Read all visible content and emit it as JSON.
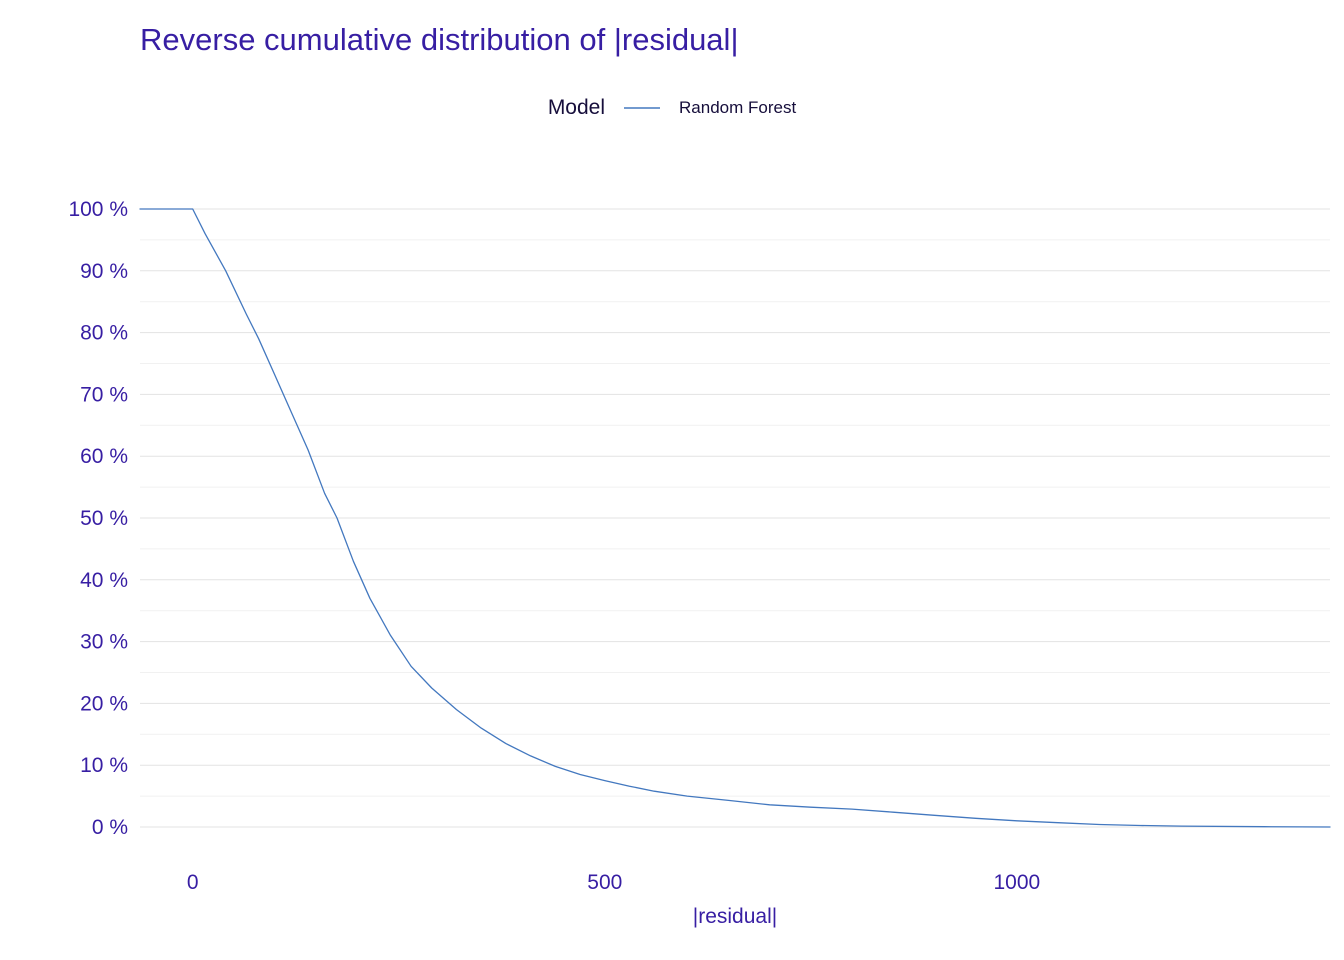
{
  "chart_data": {
    "type": "line",
    "title": "Reverse cumulative distribution of |residual|",
    "xlabel": "|residual|",
    "ylabel": "",
    "legend": {
      "title": "Model",
      "position": "top",
      "series_label": "Random Forest"
    },
    "grid": "horizontal-only",
    "xlim": [
      -64,
      1380
    ],
    "ylim": [
      0,
      100
    ],
    "x_ticks": [
      0,
      500,
      1000
    ],
    "y_ticks": [
      0,
      10,
      20,
      30,
      40,
      50,
      60,
      70,
      80,
      90,
      100
    ],
    "y_minor_ticks": [
      5,
      15,
      25,
      35,
      45,
      55,
      65,
      75,
      85,
      95
    ],
    "y_tick_suffix": " %",
    "colors": {
      "title": "#371ea3",
      "axis_text": "#371ea3",
      "legend_text": "#160e3b",
      "grid_major": "#e3e3e3",
      "grid_minor": "#f1f1f1",
      "background": "#ffffff"
    },
    "series": [
      {
        "name": "Random Forest",
        "color": "#4378bf",
        "points": [
          [
            -64,
            100
          ],
          [
            0,
            100
          ],
          [
            15,
            96
          ],
          [
            40,
            90
          ],
          [
            65,
            83
          ],
          [
            80,
            79
          ],
          [
            100,
            73
          ],
          [
            120,
            67
          ],
          [
            140,
            61
          ],
          [
            160,
            54
          ],
          [
            175,
            50
          ],
          [
            195,
            43
          ],
          [
            215,
            37
          ],
          [
            240,
            31
          ],
          [
            265,
            26
          ],
          [
            290,
            22.5
          ],
          [
            320,
            19
          ],
          [
            350,
            16
          ],
          [
            380,
            13.5
          ],
          [
            410,
            11.5
          ],
          [
            440,
            9.8
          ],
          [
            470,
            8.5
          ],
          [
            500,
            7.5
          ],
          [
            530,
            6.6
          ],
          [
            560,
            5.8
          ],
          [
            600,
            5.0
          ],
          [
            650,
            4.3
          ],
          [
            700,
            3.6
          ],
          [
            750,
            3.2
          ],
          [
            800,
            2.9
          ],
          [
            850,
            2.4
          ],
          [
            900,
            1.9
          ],
          [
            950,
            1.4
          ],
          [
            1000,
            1.0
          ],
          [
            1050,
            0.7
          ],
          [
            1100,
            0.4
          ],
          [
            1150,
            0.25
          ],
          [
            1200,
            0.15
          ],
          [
            1300,
            0.05
          ],
          [
            1380,
            0.0
          ]
        ]
      }
    ]
  }
}
